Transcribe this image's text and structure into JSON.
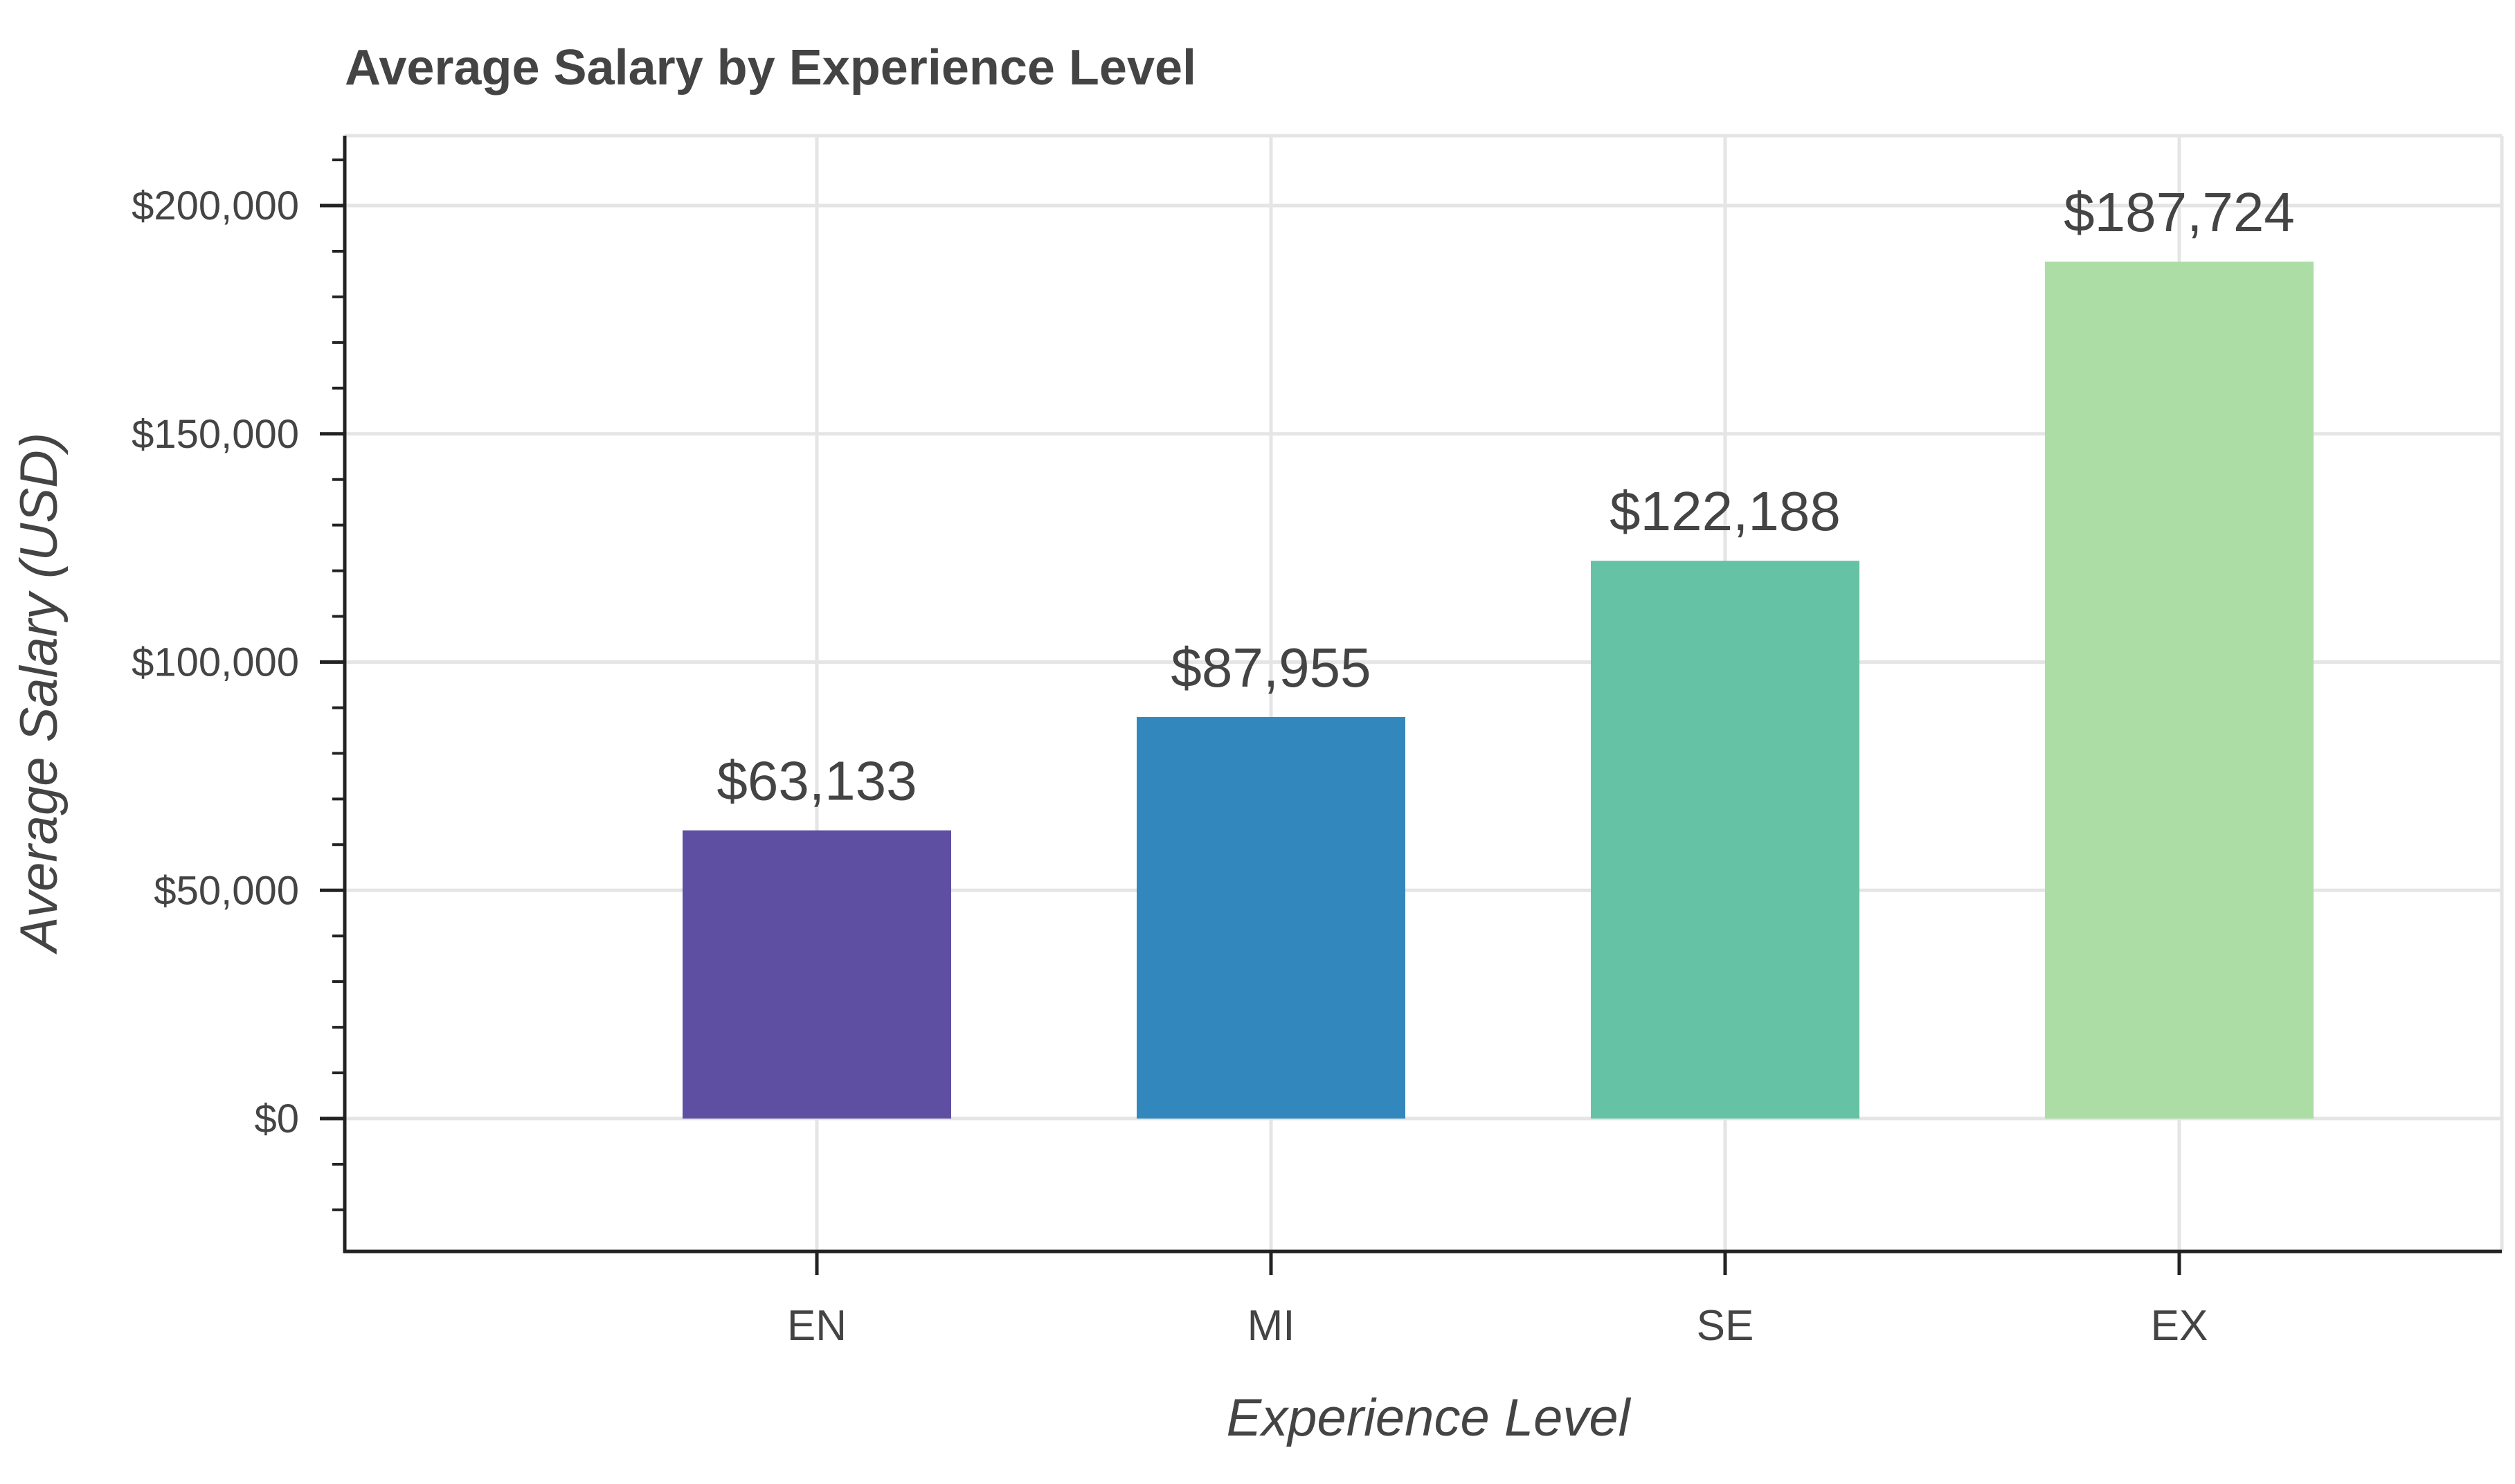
{
  "chart_data": {
    "type": "bar",
    "title": "Average Salary by Experience Level",
    "xlabel": "Experience Level",
    "ylabel": "Average Salary (USD)",
    "categories": [
      "EN",
      "MI",
      "SE",
      "EX"
    ],
    "values": [
      63133,
      87955,
      122188,
      187724
    ],
    "data_labels": [
      "$63,133",
      "$87,955",
      "$122,188",
      "$187,724"
    ],
    "colors": [
      "#5E4FA2",
      "#3288BD",
      "#66C2A5",
      "#ABDDA4"
    ],
    "ylim": [
      -28000,
      216000
    ],
    "yticks": [
      0,
      50000,
      100000,
      150000,
      200000
    ],
    "ytick_labels": [
      "$0",
      "$50,000",
      "$100,000",
      "$150,000",
      "$200,000"
    ],
    "grid": true,
    "legend": "none"
  }
}
